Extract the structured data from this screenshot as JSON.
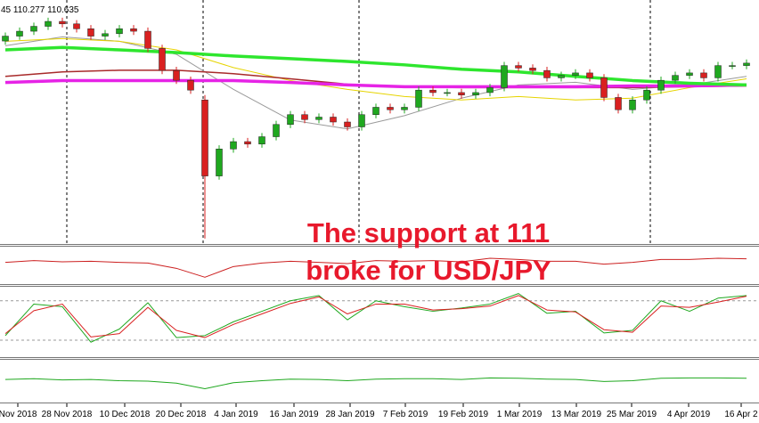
{
  "chart_data": [
    {
      "type": "candlestick",
      "header": "45 110.277 110.635",
      "annotation": [
        "The support at 111",
        "broke for USD/JPY"
      ],
      "up_color": "#1fa81f",
      "down_color": "#d92020",
      "x": [
        0,
        1,
        2,
        3,
        4,
        5,
        6,
        7,
        8,
        9,
        10,
        11,
        12,
        13,
        14,
        15,
        16,
        17,
        18,
        19,
        20,
        21,
        22,
        23,
        24,
        25,
        26,
        27,
        28,
        29,
        30,
        31,
        32,
        33,
        34,
        35,
        36,
        37,
        38,
        39,
        40,
        41,
        42,
        43,
        44,
        45,
        46,
        47,
        48,
        49,
        50,
        51,
        52
      ],
      "open": [
        112.8,
        113.0,
        113.2,
        113.4,
        113.6,
        113.5,
        113.3,
        113.0,
        113.1,
        113.3,
        113.2,
        112.5,
        111.6,
        111.2,
        110.4,
        107.3,
        108.4,
        108.7,
        108.6,
        108.9,
        109.4,
        109.8,
        109.6,
        109.7,
        109.5,
        109.3,
        109.8,
        110.1,
        110.0,
        110.1,
        110.8,
        110.7,
        110.7,
        110.6,
        110.7,
        110.9,
        111.8,
        111.7,
        111.6,
        111.3,
        111.4,
        111.5,
        111.3,
        110.5,
        110.0,
        110.4,
        110.8,
        111.2,
        111.4,
        111.5,
        111.3,
        111.8,
        111.8
      ],
      "high": [
        113.15,
        113.35,
        113.55,
        113.75,
        113.75,
        113.65,
        113.45,
        113.25,
        113.45,
        113.45,
        113.35,
        112.65,
        111.75,
        111.35,
        110.6,
        108.55,
        108.85,
        108.85,
        109.05,
        109.55,
        109.95,
        109.95,
        109.85,
        109.85,
        109.65,
        109.95,
        110.25,
        110.25,
        110.25,
        110.95,
        110.95,
        110.85,
        110.85,
        110.85,
        111.05,
        111.95,
        111.95,
        111.85,
        111.75,
        111.55,
        111.65,
        111.65,
        111.45,
        110.65,
        110.55,
        110.95,
        111.35,
        111.55,
        111.65,
        111.65,
        111.95,
        111.95,
        112.05
      ],
      "low": [
        112.65,
        112.85,
        113.05,
        113.25,
        113.35,
        113.15,
        112.85,
        112.85,
        112.95,
        113.05,
        112.35,
        111.45,
        111.05,
        110.65,
        104.75,
        107.15,
        108.25,
        108.45,
        108.45,
        108.75,
        109.25,
        109.45,
        109.45,
        109.35,
        109.15,
        109.15,
        109.65,
        109.85,
        109.85,
        109.95,
        110.55,
        110.55,
        110.45,
        110.45,
        110.55,
        110.75,
        111.55,
        111.45,
        111.15,
        111.15,
        111.25,
        111.15,
        110.35,
        109.85,
        109.85,
        110.25,
        110.65,
        111.05,
        111.25,
        111.15,
        111.15,
        111.65,
        111.65
      ],
      "close": [
        113.0,
        113.2,
        113.4,
        113.6,
        113.5,
        113.3,
        113.0,
        113.1,
        113.3,
        113.2,
        112.5,
        111.6,
        111.2,
        110.8,
        107.3,
        108.4,
        108.7,
        108.6,
        108.9,
        109.4,
        109.8,
        109.6,
        109.7,
        109.5,
        109.3,
        109.8,
        110.1,
        110.0,
        110.1,
        110.8,
        110.7,
        110.7,
        110.6,
        110.7,
        110.9,
        111.8,
        111.7,
        111.6,
        111.3,
        111.4,
        111.5,
        111.3,
        110.5,
        110.0,
        110.4,
        110.8,
        111.2,
        111.4,
        111.5,
        111.3,
        111.8,
        111.8,
        111.9
      ],
      "series": [
        {
          "color": "#9a9a9a",
          "width": 1,
          "x": [
            0,
            4,
            8,
            12,
            16,
            20,
            24,
            28,
            32,
            36,
            40,
            44,
            48,
            52
          ],
          "values": [
            112.61,
            112.97,
            112.79,
            112.26,
            110.83,
            109.58,
            109.22,
            109.76,
            110.47,
            111.01,
            111.12,
            110.83,
            111.01,
            111.36
          ]
        },
        {
          "color": "#e6d400",
          "width": 1,
          "x": [
            0,
            4,
            8,
            12,
            16,
            20,
            24,
            28,
            32,
            36,
            40,
            44,
            48,
            52
          ],
          "values": [
            112.79,
            112.9,
            112.79,
            112.44,
            111.72,
            111.19,
            110.83,
            110.54,
            110.4,
            110.54,
            110.4,
            110.47,
            110.9,
            111.26
          ]
        },
        {
          "color": "#a82a2a",
          "width": 1.5,
          "x": [
            0,
            4,
            8,
            12,
            16,
            20,
            24,
            28,
            32,
            36,
            40,
            44,
            48,
            52
          ],
          "values": [
            111.36,
            111.54,
            111.61,
            111.61,
            111.47,
            111.26,
            111.04,
            110.94,
            110.9,
            110.9,
            110.9,
            110.9,
            110.94,
            110.97
          ]
        },
        {
          "color": "#e623e6",
          "width": 3.5,
          "x": [
            0,
            4,
            8,
            12,
            16,
            20,
            24,
            28,
            32,
            36,
            40,
            44,
            48,
            52
          ],
          "values": [
            111.11,
            111.19,
            111.19,
            111.19,
            111.19,
            111.11,
            111.01,
            110.94,
            110.94,
            110.94,
            110.94,
            110.97,
            110.97,
            111.01
          ]
        },
        {
          "color": "#2ee62e",
          "width": 3.5,
          "x": [
            0,
            4,
            8,
            12,
            16,
            20,
            24,
            28,
            32,
            36,
            40,
            44,
            48,
            52
          ],
          "values": [
            112.44,
            112.54,
            112.44,
            112.33,
            112.19,
            112.08,
            111.97,
            111.83,
            111.65,
            111.54,
            111.36,
            111.19,
            111.08,
            111.01
          ]
        }
      ],
      "xlim": [
        -0.375,
        52.875
      ],
      "ylim": [
        104.6,
        114.4
      ],
      "xticks": [
        {
          "value": 0.875,
          "label": "Nov 2018"
        },
        {
          "value": 4.3125,
          "label": "28 Nov 2018"
        },
        {
          "value": 8.375,
          "label": "10 Dec 2018"
        },
        {
          "value": 12.3125,
          "label": "20 Dec 2018"
        },
        {
          "value": 16.1875,
          "label": "4 Jan 2019"
        },
        {
          "value": 20.25,
          "label": "16 Jan 2019"
        },
        {
          "value": 24.1875,
          "label": "28 Jan 2019"
        },
        {
          "value": 28.0625,
          "label": "7 Feb 2019"
        },
        {
          "value": 32.125,
          "label": "19 Feb 2019"
        },
        {
          "value": 36.0625,
          "label": "1 Mar 2019"
        },
        {
          "value": 40.0625,
          "label": "13 Mar 2019"
        },
        {
          "value": 43.9375,
          "label": "25 Mar 2019"
        },
        {
          "value": 47.9375,
          "label": "4 Apr 2019"
        },
        {
          "value": 51.625,
          "label": "16 Apr 2"
        }
      ]
    },
    {
      "type": "line",
      "xlim": [
        -0.375,
        52.875
      ],
      "ylim": [
        20,
        80
      ],
      "series": [
        {
          "color": "#cc2020",
          "width": 1,
          "x": [
            0,
            2,
            4,
            6,
            8,
            10,
            12,
            14,
            16,
            18,
            20,
            22,
            24,
            26,
            28,
            30,
            32,
            34,
            36,
            38,
            40,
            42,
            44,
            46,
            48,
            50,
            52
          ],
          "values": [
            55,
            58,
            56,
            57,
            55,
            54,
            45,
            30,
            48,
            54,
            57,
            55,
            53,
            58,
            57,
            58,
            56,
            62,
            60,
            57,
            57,
            52,
            55,
            60,
            60,
            62,
            61
          ]
        }
      ]
    },
    {
      "type": "line",
      "xlim": [
        -0.375,
        52.875
      ],
      "ylim": [
        -3,
        100
      ],
      "levels": [
        80,
        20
      ],
      "series": [
        {
          "color": "#1fa81f",
          "width": 1,
          "x": [
            0,
            2,
            4,
            6,
            8,
            10,
            12,
            14,
            16,
            18,
            20,
            22,
            24,
            26,
            28,
            30,
            32,
            34,
            36,
            38,
            40,
            42,
            44,
            46,
            48,
            50,
            52
          ],
          "values": [
            27,
            75,
            71,
            17,
            37,
            77,
            24,
            27,
            48,
            64,
            80,
            88,
            51,
            80,
            71,
            64,
            69,
            75,
            91,
            61,
            64,
            31,
            35,
            80,
            64,
            84,
            88
          ]
        },
        {
          "color": "#d92020",
          "width": 1,
          "x": [
            0,
            2,
            4,
            6,
            8,
            10,
            12,
            14,
            16,
            18,
            20,
            22,
            24,
            26,
            28,
            30,
            32,
            34,
            36,
            38,
            40,
            42,
            44,
            46,
            48,
            50,
            52
          ],
          "values": [
            30,
            65,
            75,
            25,
            30,
            70,
            35,
            24,
            44,
            60,
            76,
            86,
            60,
            75,
            75,
            66,
            68,
            72,
            88,
            66,
            63,
            36,
            32,
            72,
            70,
            78,
            87
          ]
        }
      ]
    },
    {
      "type": "line",
      "xlim": [
        -0.375,
        52.875
      ],
      "ylim": [
        0,
        100
      ],
      "series": [
        {
          "color": "#1fa81f",
          "width": 1,
          "x": [
            0,
            2,
            4,
            6,
            8,
            10,
            12,
            14,
            16,
            18,
            20,
            22,
            24,
            26,
            28,
            30,
            32,
            34,
            36,
            38,
            40,
            42,
            44,
            46,
            48,
            50,
            52
          ],
          "values": [
            53,
            55,
            52,
            53,
            50,
            49,
            44,
            30,
            45,
            50,
            54,
            53,
            50,
            54,
            55,
            55,
            53,
            57,
            56,
            54,
            53,
            48,
            50,
            56,
            57,
            57,
            56
          ]
        }
      ]
    }
  ]
}
